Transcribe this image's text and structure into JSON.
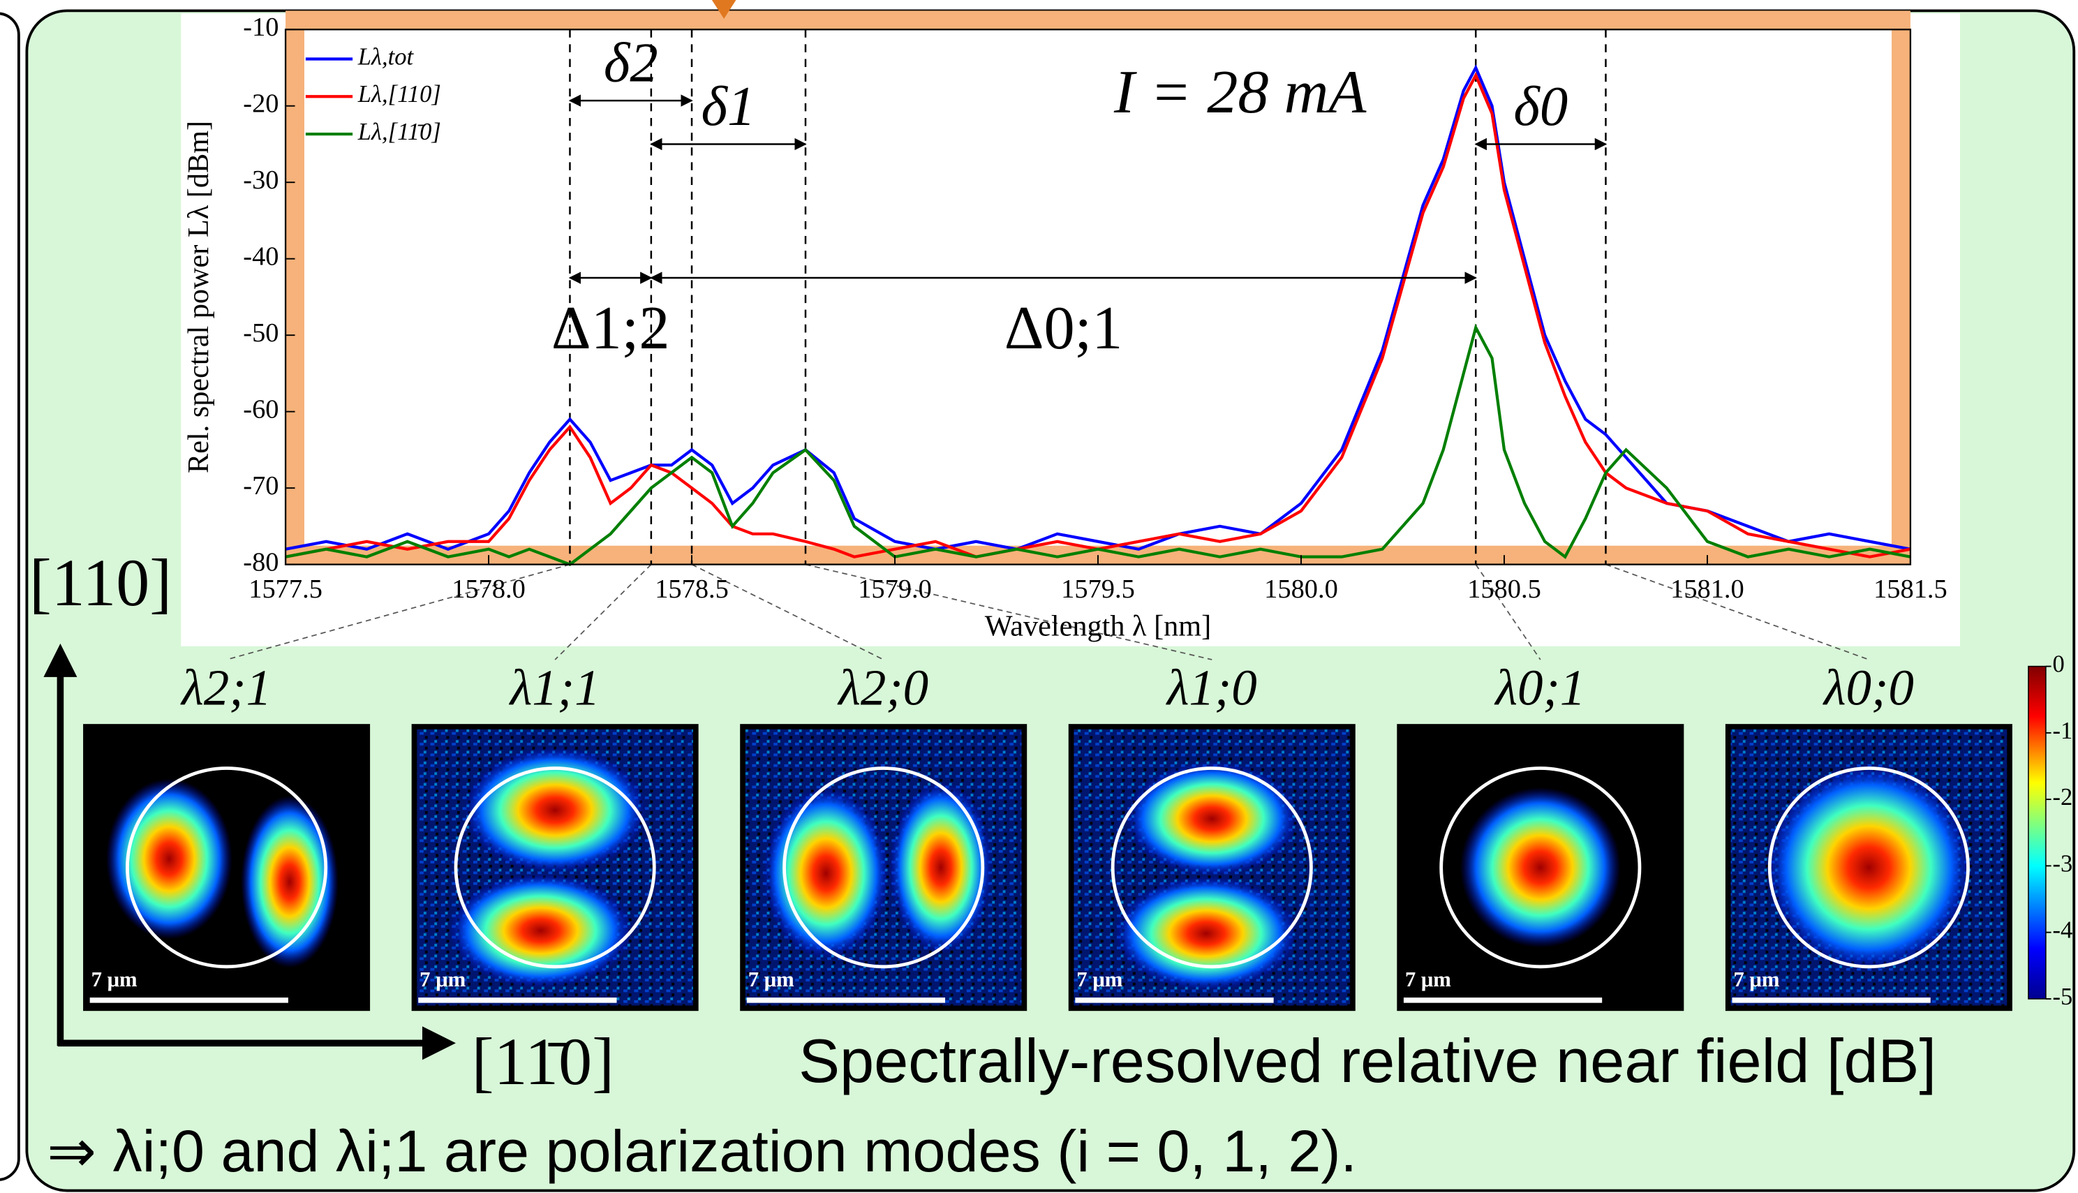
{
  "slide": {
    "caption": "Spectrally-resolved relative near field [dB]",
    "conclusion": "⇒ λi;0 and λi;1 are polarization modes (i = 0, 1, 2).",
    "axis_up": "[110]",
    "axis_right": "[11̄0]",
    "scale_bar": "7 μm"
  },
  "modes": [
    {
      "label": "λ2;1"
    },
    {
      "label": "λ1;1"
    },
    {
      "label": "λ2;0"
    },
    {
      "label": "λ1;0"
    },
    {
      "label": "λ0;1"
    },
    {
      "label": "λ0;0"
    }
  ],
  "colorbar": {
    "ticks": [
      0,
      -1,
      -2,
      -3,
      -4,
      -5
    ]
  },
  "chart_data": {
    "type": "line",
    "xlabel": "Wavelength λ [nm]",
    "ylabel": "Rel. spectral power Lλ [dBm]",
    "xlim": [
      1577.5,
      1581.5
    ],
    "ylim": [
      -80,
      -10
    ],
    "xticks": [
      1577.5,
      {
        "value": 1578,
        "label": "1578.0"
      },
      1578.5,
      {
        "value": 1579,
        "label": "1579.0"
      },
      1579.5,
      {
        "value": 1580,
        "label": "1580.0"
      },
      1580.5,
      {
        "value": 1581,
        "label": "1581.0"
      },
      1581.5
    ],
    "yticks": [
      -10,
      -20,
      -30,
      -40,
      -50,
      -60,
      -70,
      -80
    ],
    "legend": "upper left",
    "x": [
      1577.5,
      1577.6,
      1577.7,
      1577.8,
      1577.9,
      1578.0,
      1578.05,
      1578.1,
      1578.15,
      1578.2,
      1578.25,
      1578.3,
      1578.35,
      1578.4,
      1578.45,
      1578.5,
      1578.55,
      1578.6,
      1578.65,
      1578.7,
      1578.78,
      1578.85,
      1578.9,
      1579.0,
      1579.1,
      1579.2,
      1579.3,
      1579.4,
      1579.5,
      1579.6,
      1579.7,
      1579.8,
      1579.9,
      1580.0,
      1580.1,
      1580.2,
      1580.3,
      1580.35,
      1580.4,
      1580.43,
      1580.47,
      1580.5,
      1580.55,
      1580.6,
      1580.65,
      1580.7,
      1580.75,
      1580.8,
      1580.9,
      1581.0,
      1581.1,
      1581.2,
      1581.3,
      1581.4,
      1581.5
    ],
    "series": [
      {
        "name": "Lλ,tot",
        "color": "#0000ff",
        "values": [
          -78,
          -77,
          -78,
          -76,
          -78,
          -76,
          -73,
          -68,
          -64,
          -61,
          -64,
          -69,
          -68,
          -67,
          -67,
          -65,
          -67,
          -72,
          -70,
          -67,
          -65,
          -68,
          -74,
          -77,
          -78,
          -77,
          -78,
          -76,
          -77,
          -78,
          -76,
          -75,
          -76,
          -72,
          -65,
          -52,
          -33,
          -27,
          -18,
          -15,
          -20,
          -30,
          -40,
          -50,
          -56,
          -61,
          -63,
          -66,
          -72,
          -73,
          -75,
          -77,
          -76,
          -77,
          -78
        ]
      },
      {
        "name": "Lλ,[110]",
        "color": "#ff0000",
        "values": [
          -79,
          -78,
          -77,
          -78,
          -77,
          -77,
          -74,
          -69,
          -65,
          -62,
          -66,
          -72,
          -70,
          -67,
          -68,
          -70,
          -72,
          -75,
          -76,
          -76,
          -77,
          -78,
          -79,
          -78,
          -77,
          -79,
          -78,
          -77,
          -78,
          -77,
          -76,
          -77,
          -76,
          -73,
          -66,
          -53,
          -34,
          -28,
          -19,
          -16,
          -21,
          -31,
          -41,
          -51,
          -58,
          -64,
          -68,
          -70,
          -72,
          -73,
          -76,
          -77,
          -78,
          -79,
          -78
        ]
      },
      {
        "name": "Lλ,[11̄0]",
        "color": "#007f00",
        "values": [
          -79,
          -78,
          -79,
          -77,
          -79,
          -78,
          -79,
          -78,
          -79,
          -80,
          -78,
          -76,
          -73,
          -70,
          -68,
          -66,
          -68,
          -75,
          -72,
          -68,
          -65,
          -69,
          -75,
          -79,
          -78,
          -79,
          -78,
          -79,
          -78,
          -79,
          -78,
          -79,
          -78,
          -79,
          -79,
          -78,
          -72,
          -65,
          -55,
          -49,
          -53,
          -65,
          -72,
          -77,
          -79,
          -74,
          -68,
          -65,
          -70,
          -77,
          -79,
          -78,
          -79,
          -78,
          -79
        ]
      }
    ],
    "markers": [
      1578.2,
      1578.4,
      1578.5,
      1578.78,
      1580.43,
      1580.75
    ],
    "arrows": [
      {
        "label": "δ2",
        "from": 1578.2,
        "to": 1578.5,
        "y": -19.3
      },
      {
        "label": "δ1",
        "from": 1578.4,
        "to": 1578.78,
        "y": -25
      },
      {
        "label": "δ0",
        "from": 1580.43,
        "to": 1580.75,
        "y": -25
      },
      {
        "label": "Δ1;2",
        "from": 1578.2,
        "to": 1578.4,
        "y": -42.5
      },
      {
        "label": "Δ0;1",
        "from": 1578.4,
        "to": 1580.43,
        "y": -42.5
      }
    ],
    "annotations": [
      {
        "text": "I = 28 mA",
        "x": 1579.85,
        "y": -19
      }
    ]
  }
}
